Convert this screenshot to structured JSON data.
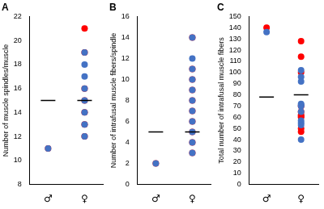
{
  "chart_data": [
    {
      "type": "scatter",
      "title": "A",
      "y_label": "Number of muscle spindles/muscle",
      "categories": [
        "♂",
        "♀"
      ],
      "values": [
        [
          11,
          12,
          13,
          14,
          15,
          16,
          17,
          18,
          19
        ],
        [
          11,
          12,
          13,
          14,
          15,
          16,
          19,
          21
        ]
      ],
      "colors": [
        "#4472c4",
        "#ff0000"
      ],
      "marker": "circle",
      "summary_values": [
        15,
        15
      ],
      "ylim": [
        8,
        22
      ],
      "yticks": [
        8,
        10,
        12,
        14,
        16,
        18,
        20,
        22
      ],
      "grid": false
    },
    {
      "type": "scatter",
      "title": "B",
      "y_label": "Number of intrafusal muscle fibers/spindle",
      "categories": [
        "♂",
        "♀"
      ],
      "values": [
        [
          2,
          3,
          4,
          5,
          6,
          7,
          8,
          9,
          10,
          11,
          12,
          14
        ],
        [
          2,
          3,
          4,
          5,
          6,
          7,
          8,
          9,
          10,
          11,
          14
        ]
      ],
      "colors": [
        "#4472c4",
        "#ff0000"
      ],
      "marker": "circle",
      "summary_values": [
        5,
        5
      ],
      "ylim": [
        0,
        16
      ],
      "yticks": [
        0,
        2,
        4,
        6,
        8,
        10,
        12,
        14,
        16
      ],
      "grid": false
    },
    {
      "type": "scatter",
      "title": "C",
      "y_label": "Total number of intrafusal muscle fibers",
      "categories": [
        "♂",
        "♀"
      ],
      "values": [
        [
          136,
          102,
          96,
          92,
          72,
          71,
          70,
          65,
          57,
          55,
          53,
          40
        ],
        [
          140,
          128,
          114,
          100,
          70,
          65,
          62,
          61,
          60,
          50,
          47
        ]
      ],
      "colors": [
        "#4472c4",
        "#ff0000"
      ],
      "marker": "circle",
      "summary_values": [
        78,
        80
      ],
      "ylim": [
        0,
        150
      ],
      "yticks": [
        0,
        10,
        20,
        30,
        40,
        50,
        60,
        70,
        80,
        90,
        100,
        110,
        120,
        130,
        140,
        150
      ],
      "grid": false
    }
  ]
}
